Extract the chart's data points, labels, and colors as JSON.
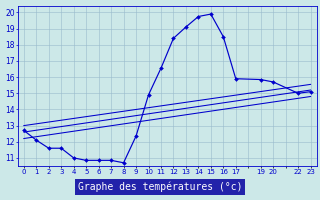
{
  "title": "Graphe des températures (°c)",
  "bg_color": "#cce8e8",
  "plot_bg_color": "#cce8e8",
  "grid_color": "#99bbcc",
  "line_color": "#0000cc",
  "label_bg_color": "#2222aa",
  "label_text_color": "#ffffff",
  "hours": [
    0,
    1,
    2,
    3,
    4,
    5,
    6,
    7,
    8,
    9,
    10,
    11,
    12,
    13,
    14,
    15,
    16,
    17,
    19,
    20,
    22,
    23
  ],
  "temps": [
    12.7,
    12.1,
    11.6,
    11.6,
    11.0,
    10.85,
    10.85,
    10.85,
    10.7,
    12.35,
    14.9,
    16.55,
    18.4,
    19.1,
    19.75,
    19.9,
    18.5,
    15.9,
    15.85,
    15.7,
    15.0,
    15.1
  ],
  "trend1_x": [
    0,
    23
  ],
  "trend1_y": [
    12.2,
    14.8
  ],
  "trend2_x": [
    0,
    23
  ],
  "trend2_y": [
    12.6,
    15.2
  ],
  "trend3_x": [
    0,
    23
  ],
  "trend3_y": [
    13.0,
    15.55
  ],
  "ylim": [
    10.5,
    20.4
  ],
  "xlim": [
    -0.5,
    23.5
  ],
  "yticks": [
    11,
    12,
    13,
    14,
    15,
    16,
    17,
    18,
    19,
    20
  ]
}
